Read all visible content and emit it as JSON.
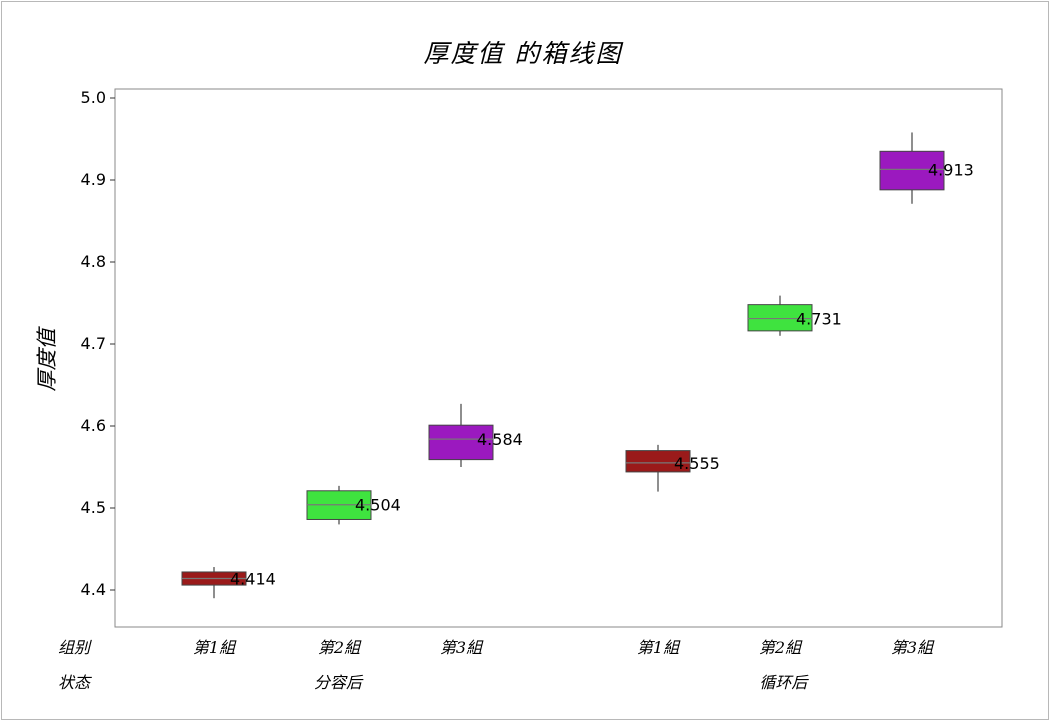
{
  "chart_data": {
    "type": "boxplot",
    "title": "厚度值 的箱线图",
    "ylabel": "厚度值",
    "ylim": [
      4.35,
      5.01
    ],
    "yticks": [
      4.4,
      4.5,
      4.6,
      4.7,
      4.8,
      4.9,
      5.0
    ],
    "ytick_labels": [
      "4.4",
      "4.5",
      "4.6",
      "4.7",
      "4.8",
      "4.9",
      "5.0"
    ],
    "grid": false,
    "row_labels": {
      "group": "组别",
      "state": "状态"
    },
    "states": [
      {
        "label": "分容后",
        "members": [
          0,
          1,
          2
        ]
      },
      {
        "label": "循环后",
        "members": [
          3,
          4,
          5
        ]
      }
    ],
    "boxes": [
      {
        "group": "第1組",
        "state": "分容后",
        "color": "#9a1a1a",
        "min": 4.39,
        "q1": 4.406,
        "median": 4.414,
        "q3": 4.422,
        "max": 4.428,
        "label": "4.414"
      },
      {
        "group": "第2組",
        "state": "分容后",
        "color": "#3fe33f",
        "min": 4.48,
        "q1": 4.486,
        "median": 4.504,
        "q3": 4.521,
        "max": 4.527,
        "label": "4.504"
      },
      {
        "group": "第3組",
        "state": "分容后",
        "color": "#9b19bf",
        "min": 4.55,
        "q1": 4.559,
        "median": 4.584,
        "q3": 4.601,
        "max": 4.627,
        "label": "4.584"
      },
      {
        "group": "第1組",
        "state": "循环后",
        "color": "#9a1a1a",
        "min": 4.52,
        "q1": 4.544,
        "median": 4.555,
        "q3": 4.57,
        "max": 4.577,
        "label": "4.555"
      },
      {
        "group": "第2組",
        "state": "循环后",
        "color": "#3fe33f",
        "min": 4.71,
        "q1": 4.716,
        "median": 4.731,
        "q3": 4.748,
        "max": 4.759,
        "label": "4.731"
      },
      {
        "group": "第3組",
        "state": "循环后",
        "color": "#9b19bf",
        "min": 4.871,
        "q1": 4.888,
        "median": 4.913,
        "q3": 4.935,
        "max": 4.958,
        "label": "4.913"
      }
    ]
  }
}
